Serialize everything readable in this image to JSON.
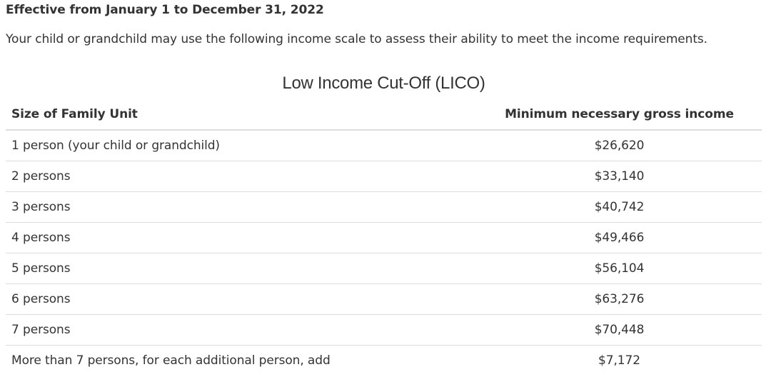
{
  "heading": "Effective from January 1 to December 31, 2022",
  "intro": "Your child or grandchild may use the following income scale to assess their ability to meet the income requirements.",
  "table": {
    "caption": "Low Income Cut-Off (LICO)",
    "headers": {
      "size": "Size of Family Unit",
      "income": "Minimum necessary gross income"
    },
    "rows": [
      {
        "size": "1 person (your child or grandchild)",
        "income": "$26,620"
      },
      {
        "size": "2 persons",
        "income": "$33,140"
      },
      {
        "size": "3 persons",
        "income": "$40,742"
      },
      {
        "size": "4 persons",
        "income": "$49,466"
      },
      {
        "size": "5 persons",
        "income": "$56,104"
      },
      {
        "size": "6 persons",
        "income": "$63,276"
      },
      {
        "size": "7 persons",
        "income": "$70,448"
      },
      {
        "size": "More than 7 persons, for each additional person, add",
        "income": "$7,172"
      }
    ]
  }
}
